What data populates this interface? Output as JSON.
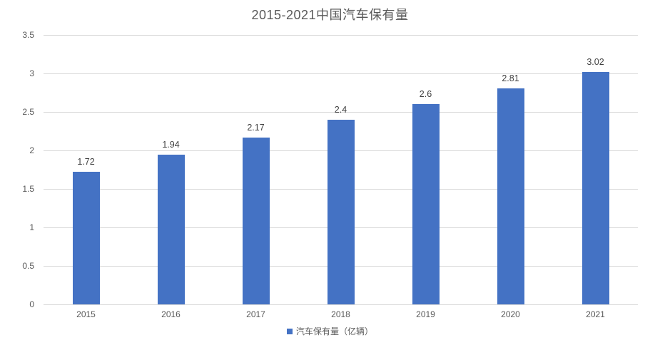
{
  "title": "2015-2021中国汽车保有量",
  "legend": {
    "marker": "blue-square",
    "label": "汽车保有量（亿辆）"
  },
  "colors": {
    "bar": "#4472C4",
    "gridline": "#d9d9d9",
    "title_text": "#595959",
    "axis_text": "#595959",
    "data_label_text": "#404040"
  },
  "chart_data": {
    "type": "bar",
    "title": "2015-2021中国汽车保有量",
    "categories": [
      "2015",
      "2016",
      "2017",
      "2018",
      "2019",
      "2020",
      "2021"
    ],
    "series": [
      {
        "name": "汽车保有量（亿辆）",
        "values": [
          1.72,
          1.94,
          2.17,
          2.4,
          2.6,
          2.81,
          3.02
        ],
        "labels": [
          "1.72",
          "1.94",
          "2.17",
          "2.4",
          "2.6",
          "2.81",
          "3.02"
        ]
      }
    ],
    "xlabel": "",
    "ylabel": "",
    "ylim": [
      0,
      3.5
    ],
    "yticks": [
      "0",
      "0.5",
      "1",
      "1.5",
      "2",
      "2.5",
      "3",
      "3.5"
    ],
    "grid": true,
    "legend_position": "bottom",
    "data_labels": true
  }
}
